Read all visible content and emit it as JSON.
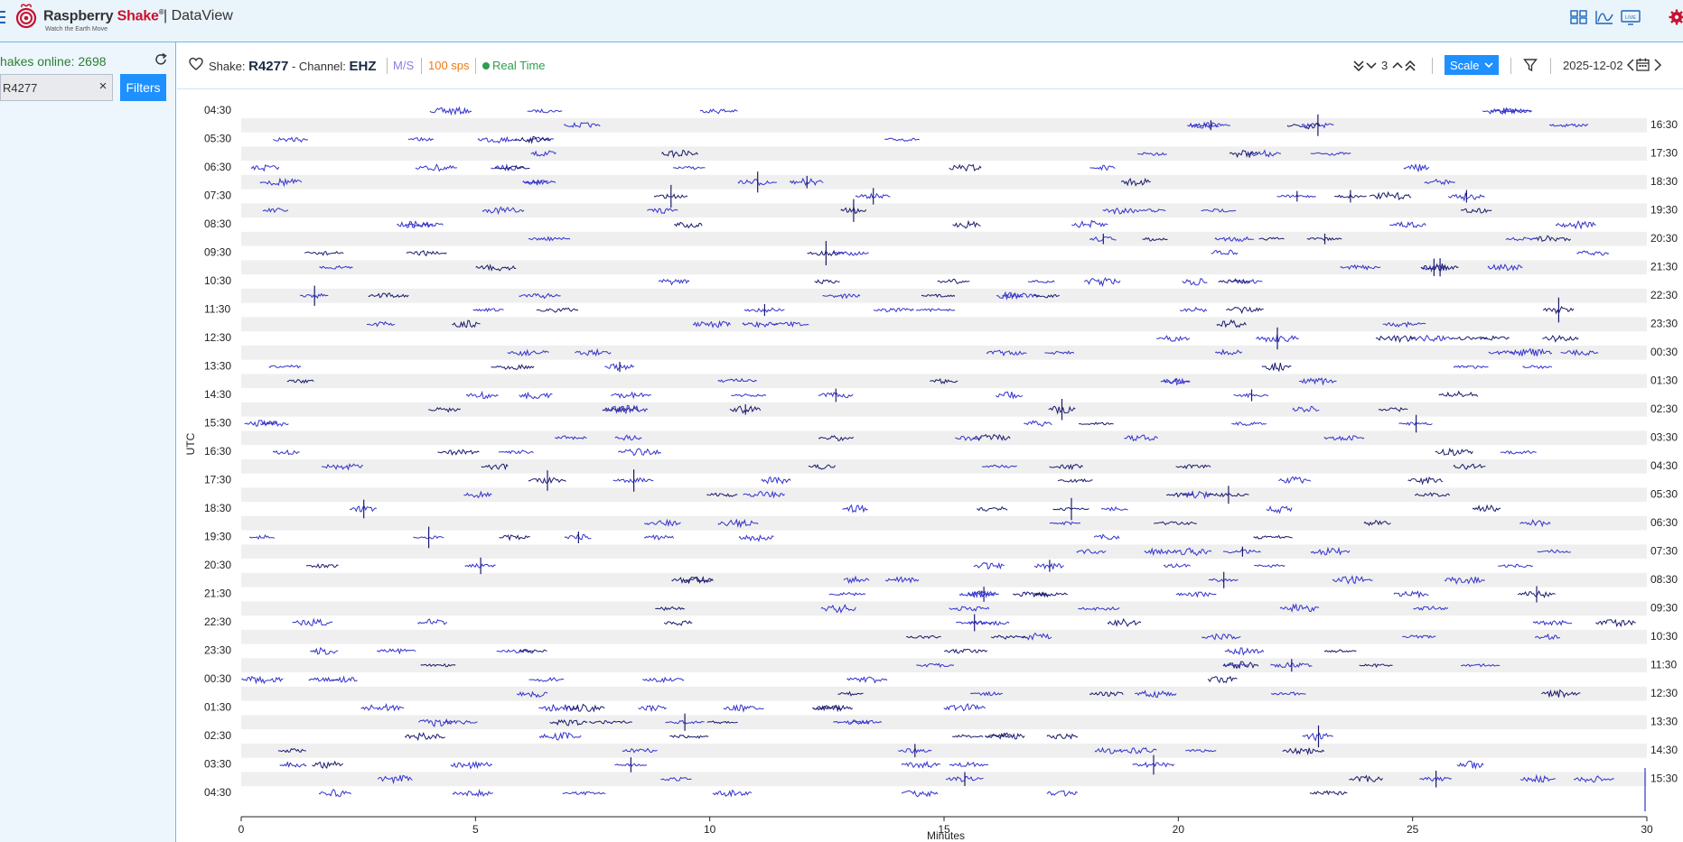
{
  "header": {
    "logo_brand": "Raspberry",
    "logo_brand_red": "Shake",
    "logo_reg": "®",
    "logo_tagline": "Watch the Earth Move",
    "app_title": "| DataView",
    "icons": [
      "compare-icon",
      "chart-icon",
      "live-monitor-icon",
      "settings-gear-icon"
    ],
    "live_label": "LIVE"
  },
  "sidebar": {
    "online_text": "hakes online: 2698",
    "search_value": "R4277",
    "clear_label": "×",
    "filters_label": "Filters"
  },
  "infobar": {
    "shake_prefix": "Shake:",
    "shake_id": "R4277",
    "channel_prefix": "- Channel:",
    "channel": "EHZ",
    "unit": "M/S",
    "sps": "100 sps",
    "mode": "Real Time",
    "lines_count": "3",
    "scale_label": "Scale",
    "date": "2025-12-02"
  },
  "colors": {
    "accent": "#1e90ff",
    "trace": "#3333cc",
    "trace_dark": "#1a1a6e",
    "band": "#efefef",
    "unit_purple": "#8c7ae6",
    "sps_orange": "#f07b14",
    "realtime_green": "#2e9e4f",
    "brand_red": "#c8102e"
  },
  "chart_data": {
    "type": "helicorder",
    "xlabel": "Minutes",
    "ylabel": "UTC",
    "x_ticks": [
      0,
      5,
      10,
      15,
      20,
      25,
      30
    ],
    "xlim": [
      0,
      30
    ],
    "rows": 49,
    "left_labels": [
      "04:30",
      "05:30",
      "06:30",
      "07:30",
      "08:30",
      "09:30",
      "10:30",
      "11:30",
      "12:30",
      "13:30",
      "14:30",
      "15:30",
      "16:30",
      "17:30",
      "18:30",
      "19:30",
      "20:30",
      "21:30",
      "22:30",
      "23:30",
      "00:30",
      "01:30",
      "02:30",
      "03:30",
      "04:30"
    ],
    "right_labels": [
      "16:30",
      "17:30",
      "18:30",
      "19:30",
      "20:30",
      "21:30",
      "22:30",
      "23:30",
      "00:30",
      "01:30",
      "02:30",
      "03:30",
      "04:30",
      "05:30",
      "06:30",
      "07:30",
      "08:30",
      "09:30",
      "10:30",
      "11:30",
      "12:30",
      "13:30",
      "14:30",
      "15:30"
    ]
  }
}
